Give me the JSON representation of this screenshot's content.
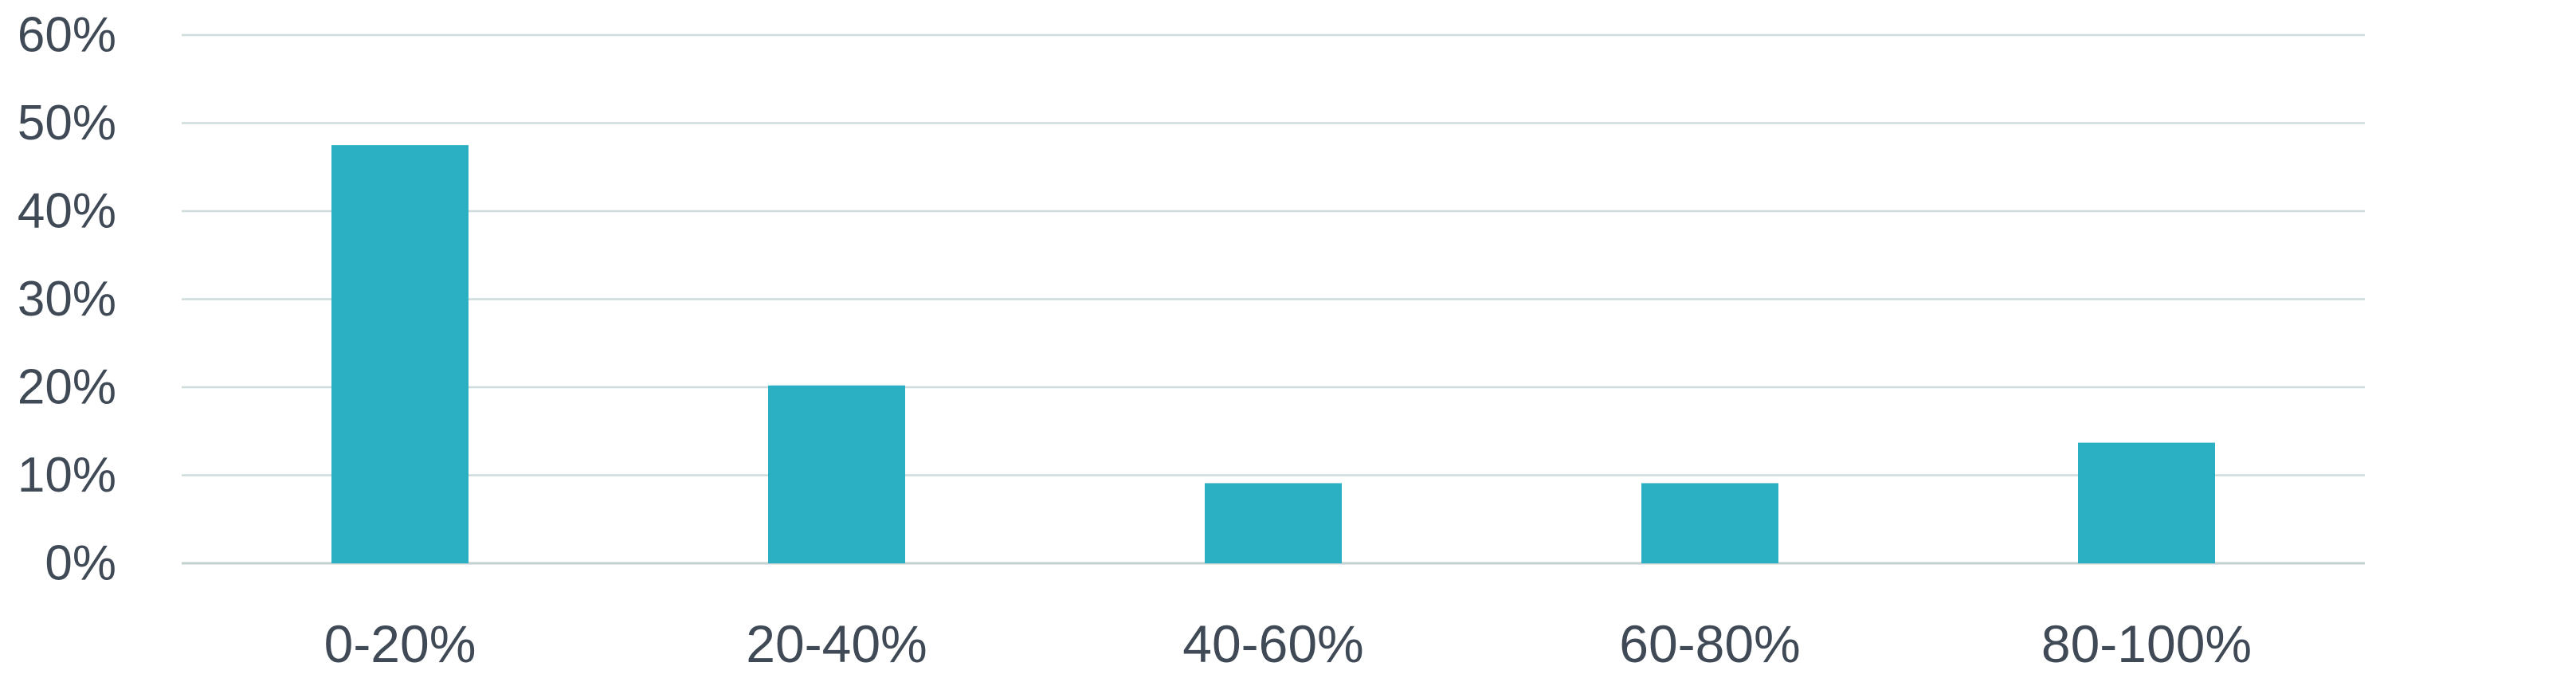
{
  "chart_data": {
    "type": "bar",
    "title": "",
    "xlabel": "",
    "ylabel": "",
    "categories": [
      "0-20%",
      "20-40%",
      "40-60%",
      "60-80%",
      "80-100%"
    ],
    "values": [
      47.5,
      20.2,
      9.1,
      9.1,
      13.7
    ],
    "ylim": [
      0,
      60
    ],
    "y_ticks": [
      0,
      10,
      20,
      30,
      40,
      50,
      60
    ],
    "y_tick_labels": [
      "0%",
      "10%",
      "20%",
      "30%",
      "40%",
      "50%",
      "60%"
    ],
    "grid": true,
    "legend": "none",
    "bar_color": "#2ab0c2"
  }
}
